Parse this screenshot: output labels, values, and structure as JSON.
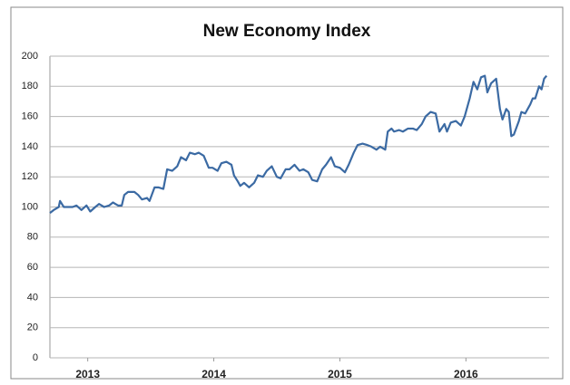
{
  "chart_data": {
    "type": "line",
    "title": "New Economy Index",
    "x": [
      2012.7,
      2012.73,
      2012.77,
      2012.78,
      2012.81,
      2012.84,
      2012.88,
      2012.91,
      2012.95,
      2012.99,
      2013.02,
      2013.06,
      2013.09,
      2013.13,
      2013.17,
      2013.2,
      2013.24,
      2013.27,
      2013.29,
      2013.32,
      2013.37,
      2013.4,
      2013.43,
      2013.47,
      2013.49,
      2013.53,
      2013.56,
      2013.6,
      2013.63,
      2013.67,
      2013.71,
      2013.74,
      2013.78,
      2013.81,
      2013.85,
      2013.88,
      2013.92,
      2013.96,
      2013.99,
      2014.03,
      2014.06,
      2014.1,
      2014.14,
      2014.16,
      2014.19,
      2014.21,
      2014.24,
      2014.28,
      2014.32,
      2014.35,
      2014.39,
      2014.42,
      2014.46,
      2014.5,
      2014.53,
      2014.57,
      2014.6,
      2014.64,
      2014.68,
      2014.71,
      2014.75,
      2014.78,
      2014.82,
      2014.86,
      2014.89,
      2014.93,
      2014.96,
      2015.0,
      2015.04,
      2015.07,
      2015.11,
      2015.14,
      2015.18,
      2015.22,
      2015.25,
      2015.29,
      2015.32,
      2015.36,
      2015.38,
      2015.41,
      2015.43,
      2015.47,
      2015.5,
      2015.54,
      2015.58,
      2015.61,
      2015.65,
      2015.68,
      2015.72,
      2015.76,
      2015.79,
      2015.83,
      2015.85,
      2015.88,
      2015.92,
      2015.96,
      2015.99,
      2016.03,
      2016.06,
      2016.09,
      2016.12,
      2016.15,
      2016.17,
      2016.2,
      2016.24,
      2016.27,
      2016.29,
      2016.32,
      2016.34,
      2016.36,
      2016.38,
      2016.42,
      2016.44,
      2016.47,
      2016.51,
      2016.53,
      2016.55,
      2016.58,
      2016.6,
      2016.62,
      2016.64
    ],
    "values": [
      96,
      98,
      100,
      104,
      100,
      100,
      100,
      101,
      98,
      101,
      97,
      100,
      102,
      100,
      101,
      103,
      101,
      101,
      108,
      110,
      110,
      108,
      105,
      106,
      104,
      113,
      113,
      112,
      125,
      124,
      127,
      133,
      131,
      136,
      135,
      136,
      134,
      126,
      126,
      124,
      129,
      130,
      128,
      121,
      117,
      114,
      116,
      113,
      116,
      121,
      120,
      124,
      127,
      120,
      119,
      125,
      125,
      128,
      124,
      125,
      123,
      118,
      117,
      125,
      128,
      133,
      127,
      126,
      123,
      128,
      136,
      141,
      142,
      141,
      140,
      138,
      140,
      138,
      150,
      152,
      150,
      151,
      150,
      152,
      152,
      151,
      155,
      160,
      163,
      162,
      150,
      155,
      150,
      156,
      157,
      154,
      160,
      172,
      183,
      178,
      186,
      187,
      176,
      182,
      185,
      165,
      158,
      165,
      163,
      147,
      148,
      157,
      163,
      162,
      168,
      172,
      172,
      180,
      178,
      185,
      187
    ],
    "color": "#3b6aa3",
    "xlim": [
      2012.7,
      2016.66
    ],
    "xticks": [
      2013,
      2014,
      2015,
      2016
    ],
    "ylim": [
      0,
      200
    ],
    "yticks": [
      0,
      20,
      40,
      60,
      80,
      100,
      120,
      140,
      160,
      180,
      200
    ],
    "grid": true
  }
}
